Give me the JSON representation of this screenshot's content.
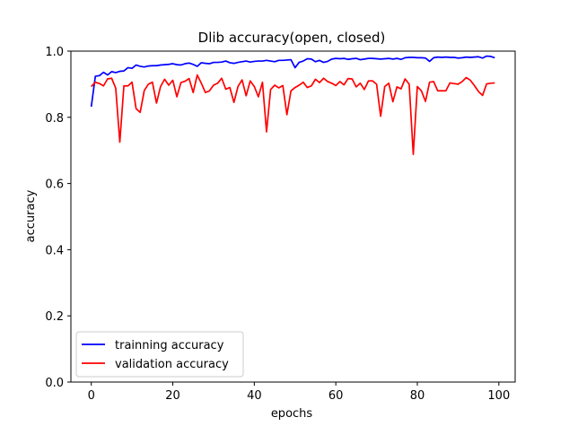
{
  "chart_data": {
    "type": "line",
    "title": "Dlib accuracy(open, closed)",
    "xlabel": "epochs",
    "ylabel": "accuracy",
    "xlim": [
      -5,
      104
    ],
    "ylim": [
      0.0,
      1.0
    ],
    "xticks": [
      0,
      20,
      40,
      60,
      80,
      100
    ],
    "xtick_labels": [
      "0",
      "20",
      "40",
      "60",
      "80",
      "100"
    ],
    "yticks": [
      0.0,
      0.2,
      0.4,
      0.6,
      0.8,
      1.0
    ],
    "ytick_labels": [
      "0.0",
      "0.2",
      "0.4",
      "0.6",
      "0.8",
      "1.0"
    ],
    "grid": false,
    "legend_position": "lower-left",
    "series": [
      {
        "name": "trainning accuracy",
        "color": "#0000ff",
        "x": [
          0,
          1,
          2,
          3,
          4,
          5,
          6,
          7,
          8,
          9,
          10,
          11,
          12,
          13,
          14,
          15,
          16,
          17,
          18,
          19,
          20,
          21,
          22,
          23,
          24,
          25,
          26,
          27,
          28,
          29,
          30,
          31,
          32,
          33,
          34,
          35,
          36,
          37,
          38,
          39,
          40,
          41,
          42,
          43,
          44,
          45,
          46,
          47,
          48,
          49,
          50,
          51,
          52,
          53,
          54,
          55,
          56,
          57,
          58,
          59,
          60,
          61,
          62,
          63,
          64,
          65,
          66,
          67,
          68,
          69,
          70,
          71,
          72,
          73,
          74,
          75,
          76,
          77,
          78,
          79,
          80,
          81,
          82,
          83,
          84,
          85,
          86,
          87,
          88,
          89,
          90,
          91,
          92,
          93,
          94,
          95,
          96,
          97,
          98,
          99
        ],
        "y": [
          0.832,
          0.924,
          0.926,
          0.936,
          0.928,
          0.938,
          0.935,
          0.939,
          0.94,
          0.95,
          0.948,
          0.958,
          0.954,
          0.952,
          0.955,
          0.956,
          0.956,
          0.958,
          0.959,
          0.96,
          0.962,
          0.959,
          0.958,
          0.962,
          0.964,
          0.96,
          0.954,
          0.965,
          0.963,
          0.962,
          0.966,
          0.966,
          0.967,
          0.97,
          0.965,
          0.963,
          0.966,
          0.968,
          0.97,
          0.967,
          0.969,
          0.97,
          0.97,
          0.972,
          0.97,
          0.968,
          0.972,
          0.972,
          0.973,
          0.974,
          0.95,
          0.966,
          0.97,
          0.977,
          0.976,
          0.968,
          0.972,
          0.966,
          0.969,
          0.976,
          0.978,
          0.977,
          0.978,
          0.975,
          0.977,
          0.978,
          0.974,
          0.976,
          0.978,
          0.978,
          0.977,
          0.976,
          0.977,
          0.978,
          0.976,
          0.978,
          0.975,
          0.98,
          0.981,
          0.981,
          0.98,
          0.98,
          0.979,
          0.969,
          0.98,
          0.982,
          0.981,
          0.982,
          0.981,
          0.981,
          0.979,
          0.98,
          0.982,
          0.981,
          0.982,
          0.983,
          0.979,
          0.985,
          0.984,
          0.98
        ]
      },
      {
        "name": "validation accuracy",
        "color": "#ff0000",
        "x": [
          0,
          1,
          2,
          3,
          4,
          5,
          6,
          7,
          8,
          9,
          10,
          11,
          12,
          13,
          14,
          15,
          16,
          17,
          18,
          19,
          20,
          21,
          22,
          23,
          24,
          25,
          26,
          27,
          28,
          29,
          30,
          31,
          32,
          33,
          34,
          35,
          36,
          37,
          38,
          39,
          40,
          41,
          42,
          43,
          44,
          45,
          46,
          47,
          48,
          49,
          50,
          51,
          52,
          53,
          54,
          55,
          56,
          57,
          58,
          59,
          60,
          61,
          62,
          63,
          64,
          65,
          66,
          67,
          68,
          69,
          70,
          71,
          72,
          73,
          74,
          75,
          76,
          77,
          78,
          79,
          80,
          81,
          82,
          83,
          84,
          85,
          86,
          87,
          88,
          89,
          90,
          91,
          92,
          93,
          94,
          95,
          96,
          97,
          98,
          99
        ],
        "y": [
          0.893,
          0.906,
          0.902,
          0.895,
          0.916,
          0.918,
          0.888,
          0.725,
          0.895,
          0.895,
          0.906,
          0.826,
          0.815,
          0.881,
          0.9,
          0.906,
          0.843,
          0.893,
          0.915,
          0.897,
          0.912,
          0.862,
          0.905,
          0.909,
          0.917,
          0.875,
          0.928,
          0.903,
          0.875,
          0.88,
          0.897,
          0.903,
          0.918,
          0.885,
          0.89,
          0.845,
          0.893,
          0.913,
          0.865,
          0.91,
          0.893,
          0.862,
          0.906,
          0.756,
          0.884,
          0.897,
          0.889,
          0.896,
          0.808,
          0.88,
          0.89,
          0.897,
          0.906,
          0.89,
          0.895,
          0.915,
          0.905,
          0.918,
          0.908,
          0.903,
          0.896,
          0.908,
          0.898,
          0.917,
          0.916,
          0.892,
          0.903,
          0.884,
          0.91,
          0.91,
          0.9,
          0.803,
          0.893,
          0.903,
          0.847,
          0.892,
          0.886,
          0.916,
          0.9,
          0.688,
          0.893,
          0.88,
          0.848,
          0.906,
          0.908,
          0.88,
          0.88,
          0.88,
          0.904,
          0.902,
          0.9,
          0.908,
          0.92,
          0.912,
          0.896,
          0.878,
          0.866,
          0.901,
          0.903,
          0.904
        ]
      }
    ]
  }
}
